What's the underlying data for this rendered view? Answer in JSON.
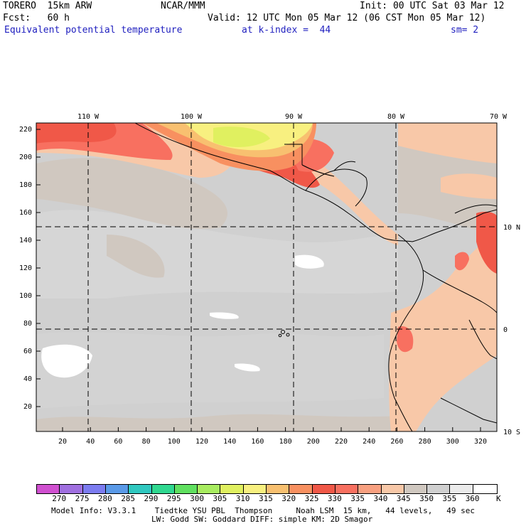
{
  "header": {
    "line1_left": "TORERO  15km ARW",
    "line1_mid": "NCAR/MMM",
    "line1_right": "Init: 00 UTC Sat 03 Mar 12",
    "line2_left": "Fcst:   60 h",
    "line2_right": "Valid: 12 UTC Mon 05 Mar 12 (06 CST Mon 05 Mar 12)",
    "line3_field": "Equivalent potential temperature",
    "line3_level": "at k-index =  44",
    "line3_sm": "sm= 2"
  },
  "map": {
    "top_lon_labels": [
      "110 W",
      "100 W",
      "90 W",
      "80 W",
      "70 W"
    ],
    "right_lat_labels": [
      "10 N",
      "0",
      "10 S"
    ],
    "y_grid_labels": [
      "220",
      "200",
      "180",
      "160",
      "140",
      "120",
      "100",
      "80",
      "60",
      "40",
      "20"
    ],
    "x_grid_labels": [
      "20",
      "40",
      "60",
      "80",
      "100",
      "120",
      "140",
      "160",
      "180",
      "200",
      "220",
      "240",
      "260",
      "280",
      "300",
      "320"
    ]
  },
  "colorbar": {
    "unit": "K",
    "labels": [
      "270",
      "275",
      "280",
      "285",
      "290",
      "295",
      "300",
      "305",
      "310",
      "315",
      "320",
      "325",
      "330",
      "335",
      "340",
      "345",
      "350",
      "355",
      "360"
    ],
    "colors": [
      "#d050d0",
      "#a070e0",
      "#7c7cf0",
      "#5a9ae8",
      "#30c8c0",
      "#30d890",
      "#60e060",
      "#a8ec60",
      "#e0f060",
      "#f8f080",
      "#f8c070",
      "#f89060",
      "#f05848",
      "#f87060",
      "#f8a080",
      "#f8c8a8",
      "#d0c8c0",
      "#d0d0d0",
      "#ebebeb",
      "#ffffff"
    ]
  },
  "footer": {
    "line1": "Model Info: V3.3.1    Tiedtke YSU PBL  Thompson     Noah LSM  15 km,   44 levels,   49 sec",
    "line2": "LW: Godd SW: Goddard DIFF: simple KM: 2D Smagor"
  }
}
